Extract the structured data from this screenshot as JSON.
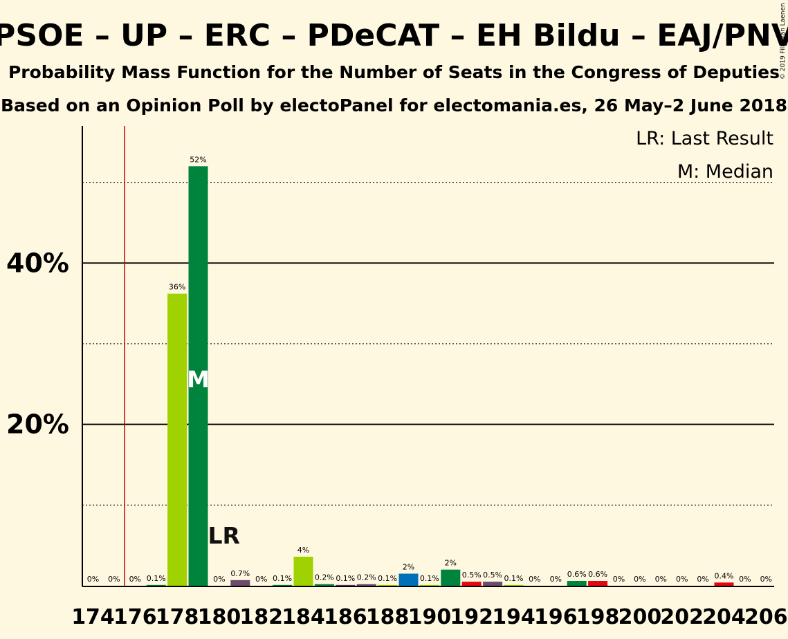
{
  "chart_data": {
    "type": "bar",
    "title": "PSOE – UP – ERC – PDeCAT – EH Bildu – EAJ/PNV",
    "subtitle": "Probability Mass Function for the Number of Seats in the Congress of Deputies",
    "subtitle2": "Based on an Opinion Poll by electoPanel for electomania.es, 26 May–2 June 2018",
    "copyright": "© 2019 Filip van Laenen",
    "legend": [
      "LR: Last Result",
      "M: Median"
    ],
    "ylim": [
      0,
      57
    ],
    "y_ticks": [
      {
        "value": 20,
        "label": "20%"
      },
      {
        "value": 40,
        "label": "40%"
      }
    ],
    "minor_gridlines": [
      10,
      30,
      50
    ],
    "x_tick_labels": [
      "174",
      "176",
      "178",
      "180",
      "182",
      "184",
      "186",
      "188",
      "190",
      "192",
      "194",
      "196",
      "198",
      "200",
      "202",
      "204",
      "206"
    ],
    "last_result_seat": 176,
    "last_result_marker": "LR",
    "median_seat": 179,
    "median_marker": "M",
    "bars": [
      {
        "seat": 174,
        "value": 0,
        "label": "0%",
        "color": "#9fd200"
      },
      {
        "seat": 175,
        "value": 0,
        "label": "0%",
        "color": "#00843d"
      },
      {
        "seat": 176,
        "value": 0,
        "label": "0%",
        "color": "#9fd200"
      },
      {
        "seat": 177,
        "value": 0.1,
        "label": "0.1%",
        "color": "#00843d"
      },
      {
        "seat": 178,
        "value": 36.2,
        "label": "36%",
        "color": "#9fd200"
      },
      {
        "seat": 179,
        "value": 52,
        "label": "52%",
        "color": "#00843d"
      },
      {
        "seat": 180,
        "value": 0,
        "label": "0%",
        "color": "#6b2e68"
      },
      {
        "seat": 181,
        "value": 0.7,
        "label": "0.7%",
        "color": "#6b4a6e"
      },
      {
        "seat": 182,
        "value": 0,
        "label": "0%",
        "color": "#9fd200"
      },
      {
        "seat": 183,
        "value": 0.1,
        "label": "0.1%",
        "color": "#00843d"
      },
      {
        "seat": 184,
        "value": 3.6,
        "label": "4%",
        "color": "#9fd200"
      },
      {
        "seat": 185,
        "value": 0.2,
        "label": "0.2%",
        "color": "#00843d"
      },
      {
        "seat": 186,
        "value": 0.1,
        "label": "0.1%",
        "color": "#6b2e68"
      },
      {
        "seat": 187,
        "value": 0.2,
        "label": "0.2%",
        "color": "#6b4a6e"
      },
      {
        "seat": 188,
        "value": 0.1,
        "label": "0.1%",
        "color": "#9fd200"
      },
      {
        "seat": 189,
        "value": 1.5,
        "label": "2%",
        "color": "#0070b8"
      },
      {
        "seat": 190,
        "value": 0.1,
        "label": "0.1%",
        "color": "#9fd200"
      },
      {
        "seat": 191,
        "value": 2,
        "label": "2%",
        "color": "#00843d"
      },
      {
        "seat": 192,
        "value": 0.5,
        "label": "0.5%",
        "color": "#e30613"
      },
      {
        "seat": 193,
        "value": 0.5,
        "label": "0.5%",
        "color": "#6b4a6e"
      },
      {
        "seat": 194,
        "value": 0.1,
        "label": "0.1%",
        "color": "#9fd200"
      },
      {
        "seat": 195,
        "value": 0,
        "label": "0%",
        "color": "#00843d"
      },
      {
        "seat": 196,
        "value": 0,
        "label": "0%",
        "color": "#9fd200"
      },
      {
        "seat": 197,
        "value": 0.6,
        "label": "0.6%",
        "color": "#00843d"
      },
      {
        "seat": 198,
        "value": 0.6,
        "label": "0.6%",
        "color": "#e30613"
      },
      {
        "seat": 199,
        "value": 0,
        "label": "0%",
        "color": "#6b4a6e"
      },
      {
        "seat": 200,
        "value": 0,
        "label": "0%",
        "color": "#9fd200"
      },
      {
        "seat": 201,
        "value": 0,
        "label": "0%",
        "color": "#00843d"
      },
      {
        "seat": 202,
        "value": 0,
        "label": "0%",
        "color": "#9fd200"
      },
      {
        "seat": 203,
        "value": 0,
        "label": "0%",
        "color": "#00843d"
      },
      {
        "seat": 204,
        "value": 0.4,
        "label": "0.4%",
        "color": "#e30613"
      },
      {
        "seat": 205,
        "value": 0,
        "label": "0%",
        "color": "#6b4a6e"
      },
      {
        "seat": 206,
        "value": 0,
        "label": "0%",
        "color": "#9fd200"
      }
    ],
    "colors": {
      "background": "#fff8e1",
      "last_result_line": "#c00000",
      "median_marker": "#ffffff"
    }
  }
}
